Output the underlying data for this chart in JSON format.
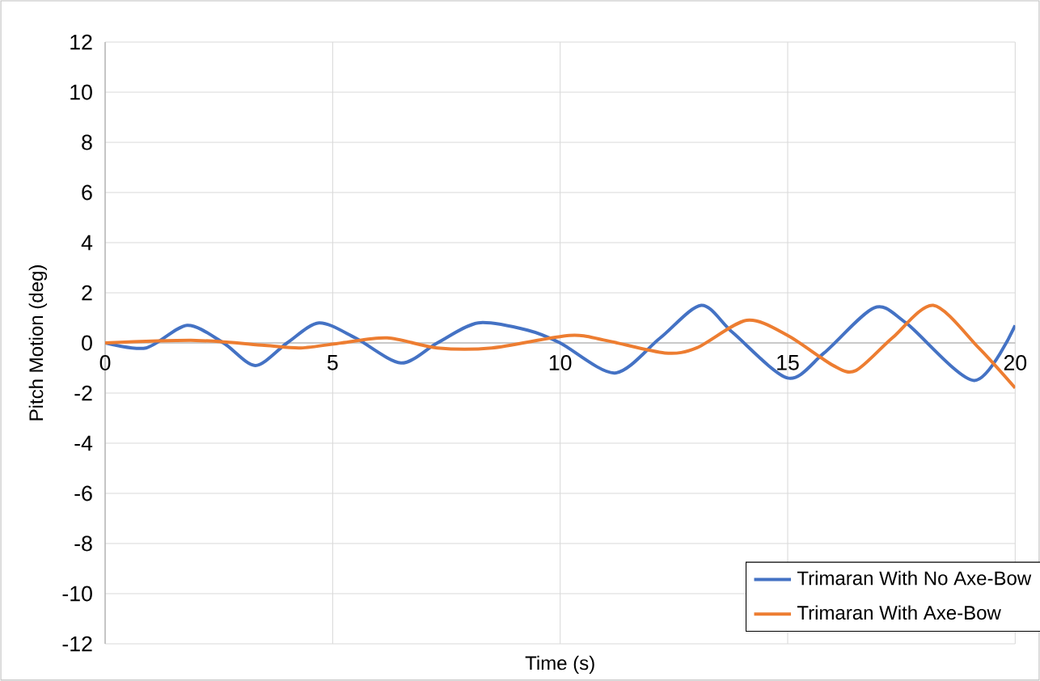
{
  "chart_data": {
    "type": "line",
    "xlabel": "Time (s)",
    "ylabel": "Pitch Motion (deg)",
    "xlim": [
      0,
      20
    ],
    "xticks": [
      0,
      5,
      10,
      15,
      20
    ],
    "ylim": [
      -12,
      12
    ],
    "yticks": [
      -12,
      -10,
      -8,
      -6,
      -4,
      -2,
      0,
      2,
      4,
      6,
      8,
      10,
      12
    ],
    "grid": true,
    "legend": "bottom right",
    "series": [
      {
        "name": "Trimaran With No Axe-Bow",
        "color": "#4472c4",
        "x": [
          0,
          0.9,
          1.8,
          2.6,
          3.3,
          4.0,
          4.7,
          5.5,
          6.5,
          7.3,
          8.2,
          9.3,
          10,
          11.2,
          12.2,
          13.1,
          13.8,
          15,
          15.8,
          16.9,
          17.6,
          19.1,
          20
        ],
        "values": [
          0,
          -0.2,
          0.7,
          0,
          -0.9,
          0,
          0.8,
          0.2,
          -0.8,
          0,
          0.8,
          0.5,
          0,
          -1.2,
          0.2,
          1.5,
          0.4,
          -1.4,
          -0.4,
          1.4,
          0.8,
          -1.5,
          0.7
        ]
      },
      {
        "name": "Trimaran With Axe-Bow",
        "color": "#ed7d31",
        "x": [
          0,
          2,
          3.5,
          4.3,
          5.2,
          6.2,
          7.3,
          8.5,
          10.2,
          11,
          12.3,
          13.0,
          14.1,
          15,
          16.0,
          16.5,
          17.3,
          18.2,
          19.2,
          20
        ],
        "values": [
          0,
          0.1,
          -0.1,
          -0.2,
          0,
          0.2,
          -0.2,
          -0.2,
          0.3,
          0.1,
          -0.4,
          -0.2,
          0.9,
          0.3,
          -0.9,
          -1.1,
          0.2,
          1.5,
          -0.2,
          -1.8
        ]
      }
    ]
  }
}
